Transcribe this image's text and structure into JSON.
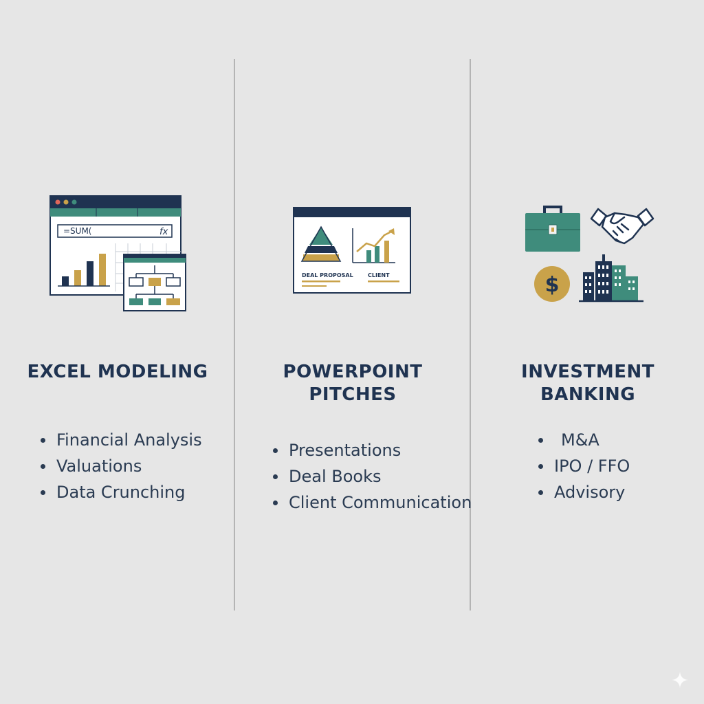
{
  "columns": [
    {
      "title_lines": [
        "EXCEL MODELING"
      ],
      "bullets": [
        "Financial Analysis",
        "Valuations",
        "Data Crunching"
      ],
      "formula": "=SUM(",
      "formula_fx": "fx",
      "icon": "spreadsheet-icon"
    },
    {
      "title_lines": [
        "POWERPOINT",
        "PITCHES"
      ],
      "bullets": [
        "Presentations",
        "Deal Books",
        "Client Communication"
      ],
      "slide_left_label": "DEAL PROPOSAL",
      "slide_right_label": "CLIENT",
      "icon": "presentation-slide-icon"
    },
    {
      "title_lines": [
        "INVESTMENT",
        "BANKING"
      ],
      "bullets": [
        "M&A",
        "IPO / FFO",
        "Advisory"
      ],
      "icons": [
        "briefcase-icon",
        "handshake-icon",
        "dollar-coin-icon",
        "city-buildings-icon"
      ]
    }
  ],
  "colors": {
    "navy": "#1f3351",
    "teal": "#3f8c7c",
    "gold": "#c9a24a",
    "background": "#e6e6e6",
    "divider": "#b4b4b4"
  }
}
